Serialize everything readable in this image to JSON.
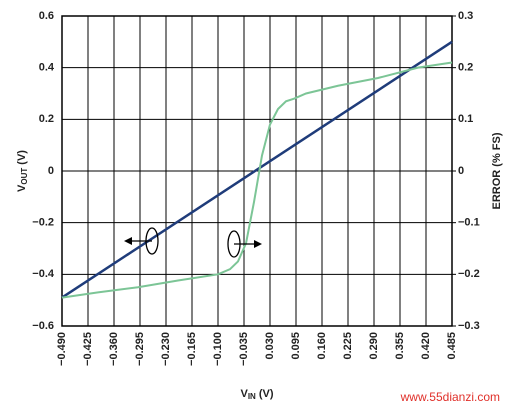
{
  "chart_data": {
    "type": "line",
    "x_label": [
      "V",
      "IN",
      "(V)"
    ],
    "y_label": [
      "V",
      "OUT",
      "(V)"
    ],
    "y2_label": "ERROR (% FS)",
    "watermark": "www.55dianzi.com",
    "xlim": [
      -0.49,
      0.485
    ],
    "ylim": [
      -0.6,
      0.6
    ],
    "y2lim": [
      -0.3,
      0.3
    ],
    "grid": true,
    "xticks": [
      {
        "value": -0.49,
        "label": "−0.490"
      },
      {
        "value": -0.425,
        "label": "−0.425"
      },
      {
        "value": -0.36,
        "label": "−0.360"
      },
      {
        "value": -0.295,
        "label": "−0.295"
      },
      {
        "value": -0.23,
        "label": "−0.230"
      },
      {
        "value": -0.165,
        "label": "−0.165"
      },
      {
        "value": -0.1,
        "label": "−0.100"
      },
      {
        "value": -0.035,
        "label": "−0.035"
      },
      {
        "value": 0.03,
        "label": "0.030"
      },
      {
        "value": 0.095,
        "label": "0.095"
      },
      {
        "value": 0.16,
        "label": "0.160"
      },
      {
        "value": 0.225,
        "label": "0.225"
      },
      {
        "value": 0.29,
        "label": "0.290"
      },
      {
        "value": 0.355,
        "label": "0.355"
      },
      {
        "value": 0.42,
        "label": "0.420"
      },
      {
        "value": 0.485,
        "label": "0.485"
      }
    ],
    "yticks": [
      {
        "value": -0.6,
        "label": "−0.6"
      },
      {
        "value": -0.4,
        "label": "−0.4"
      },
      {
        "value": -0.2,
        "label": "−0.2"
      },
      0,
      0.2,
      0.4,
      0.6
    ],
    "y2ticks": [
      {
        "value": -0.3,
        "label": "−0.3"
      },
      {
        "value": -0.2,
        "label": "−0.2"
      },
      {
        "value": -0.1,
        "label": "−0.1"
      },
      0,
      0.1,
      0.2,
      0.3
    ],
    "series": [
      {
        "color": "#1f3c7a",
        "x": [
          -0.49,
          0.485
        ],
        "values": [
          -0.49,
          0.5
        ]
      },
      {
        "color": "#7cc596",
        "axis": "y2",
        "x": [
          -0.49,
          -0.4,
          -0.3,
          -0.2,
          -0.1,
          -0.07,
          -0.05,
          -0.03,
          -0.01,
          0.01,
          0.03,
          0.05,
          0.07,
          0.09,
          0.12,
          0.2,
          0.3,
          0.4,
          0.485
        ],
        "values": [
          -0.245,
          -0.235,
          -0.225,
          -0.212,
          -0.2,
          -0.19,
          -0.175,
          -0.14,
          -0.06,
          0.03,
          0.09,
          0.12,
          0.135,
          0.14,
          0.15,
          0.165,
          0.18,
          0.2,
          0.21
        ]
      }
    ]
  }
}
